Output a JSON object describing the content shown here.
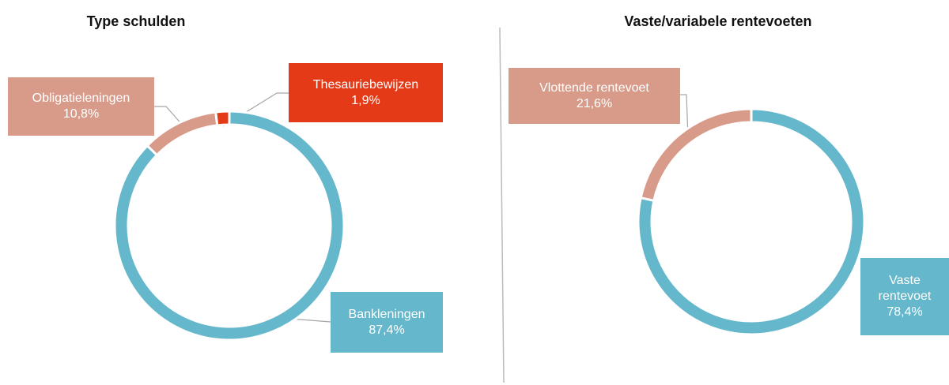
{
  "chart_data": [
    {
      "type": "pie",
      "title": "Type schulden",
      "categories": [
        "Bankleningen",
        "Obligatieleningen",
        "Thesauriebewijzen"
      ],
      "values": [
        87.4,
        10.8,
        1.9
      ],
      "value_labels": [
        "87,4%",
        "10,8%",
        "1,9%"
      ],
      "colors": [
        "#65b7cb",
        "#d89b8a",
        "#e43a17"
      ]
    },
    {
      "type": "pie",
      "title": "Vaste/variabele rentevoeten",
      "categories": [
        "Vaste rentevoet",
        "Vlottende rentevoet"
      ],
      "values": [
        78.4,
        21.6
      ],
      "value_labels": [
        "78,4%",
        "21,6%"
      ],
      "colors": [
        "#65b7cb",
        "#d89b8a"
      ]
    }
  ]
}
